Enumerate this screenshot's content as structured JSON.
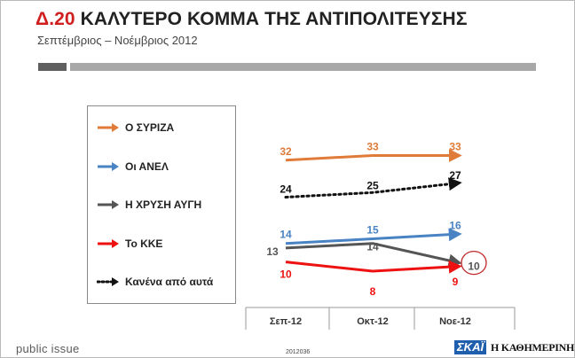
{
  "header": {
    "title_code": "Δ.20",
    "title_text": "ΚΑΛΥΤΕΡΟ ΚΟΜΜΑ ΤΗΣ ΑΝΤΙΠΟΛΙΤΕΥΣΗΣ",
    "subtitle": "Σεπτέμβριος – Νοέμβριος 2012"
  },
  "footer": {
    "brand": "public issue",
    "code": "2012036",
    "logo_skai": "ΣΚΑΪ",
    "logo_kathimerini": "Η ΚΑΘΗΜΕΡΙΝΗ"
  },
  "chart_data": {
    "type": "line",
    "categories": [
      "Σεπ-12",
      "Οκτ-12",
      "Νοε-12"
    ],
    "ylim": [
      0,
      40
    ],
    "grid": false,
    "legend_position": "left",
    "series": [
      {
        "name": "Ο ΣΥΡΙΖΑ",
        "values": [
          32,
          33,
          33
        ],
        "color": "#e07b39",
        "style": "solid"
      },
      {
        "name": "Οι ΑΝΕΛ",
        "values": [
          14,
          15,
          16
        ],
        "color": "#4a83c4",
        "style": "solid"
      },
      {
        "name": "Η ΧΡΥΣΗ ΑΥΓΗ",
        "values": [
          13,
          14,
          10
        ],
        "color": "#555555",
        "style": "solid"
      },
      {
        "name": "Το ΚΚΕ",
        "values": [
          10,
          8,
          9
        ],
        "color": "#ee1111",
        "style": "solid"
      },
      {
        "name": "Κανένα από αυτά",
        "values": [
          24,
          25,
          27
        ],
        "color": "#111111",
        "style": "dotted"
      }
    ],
    "annotations": [
      {
        "type": "circle",
        "series": "Η ΧΡΥΣΗ ΑΥΓΗ",
        "category": "Νοε-12",
        "color": "#c0282b"
      }
    ]
  }
}
